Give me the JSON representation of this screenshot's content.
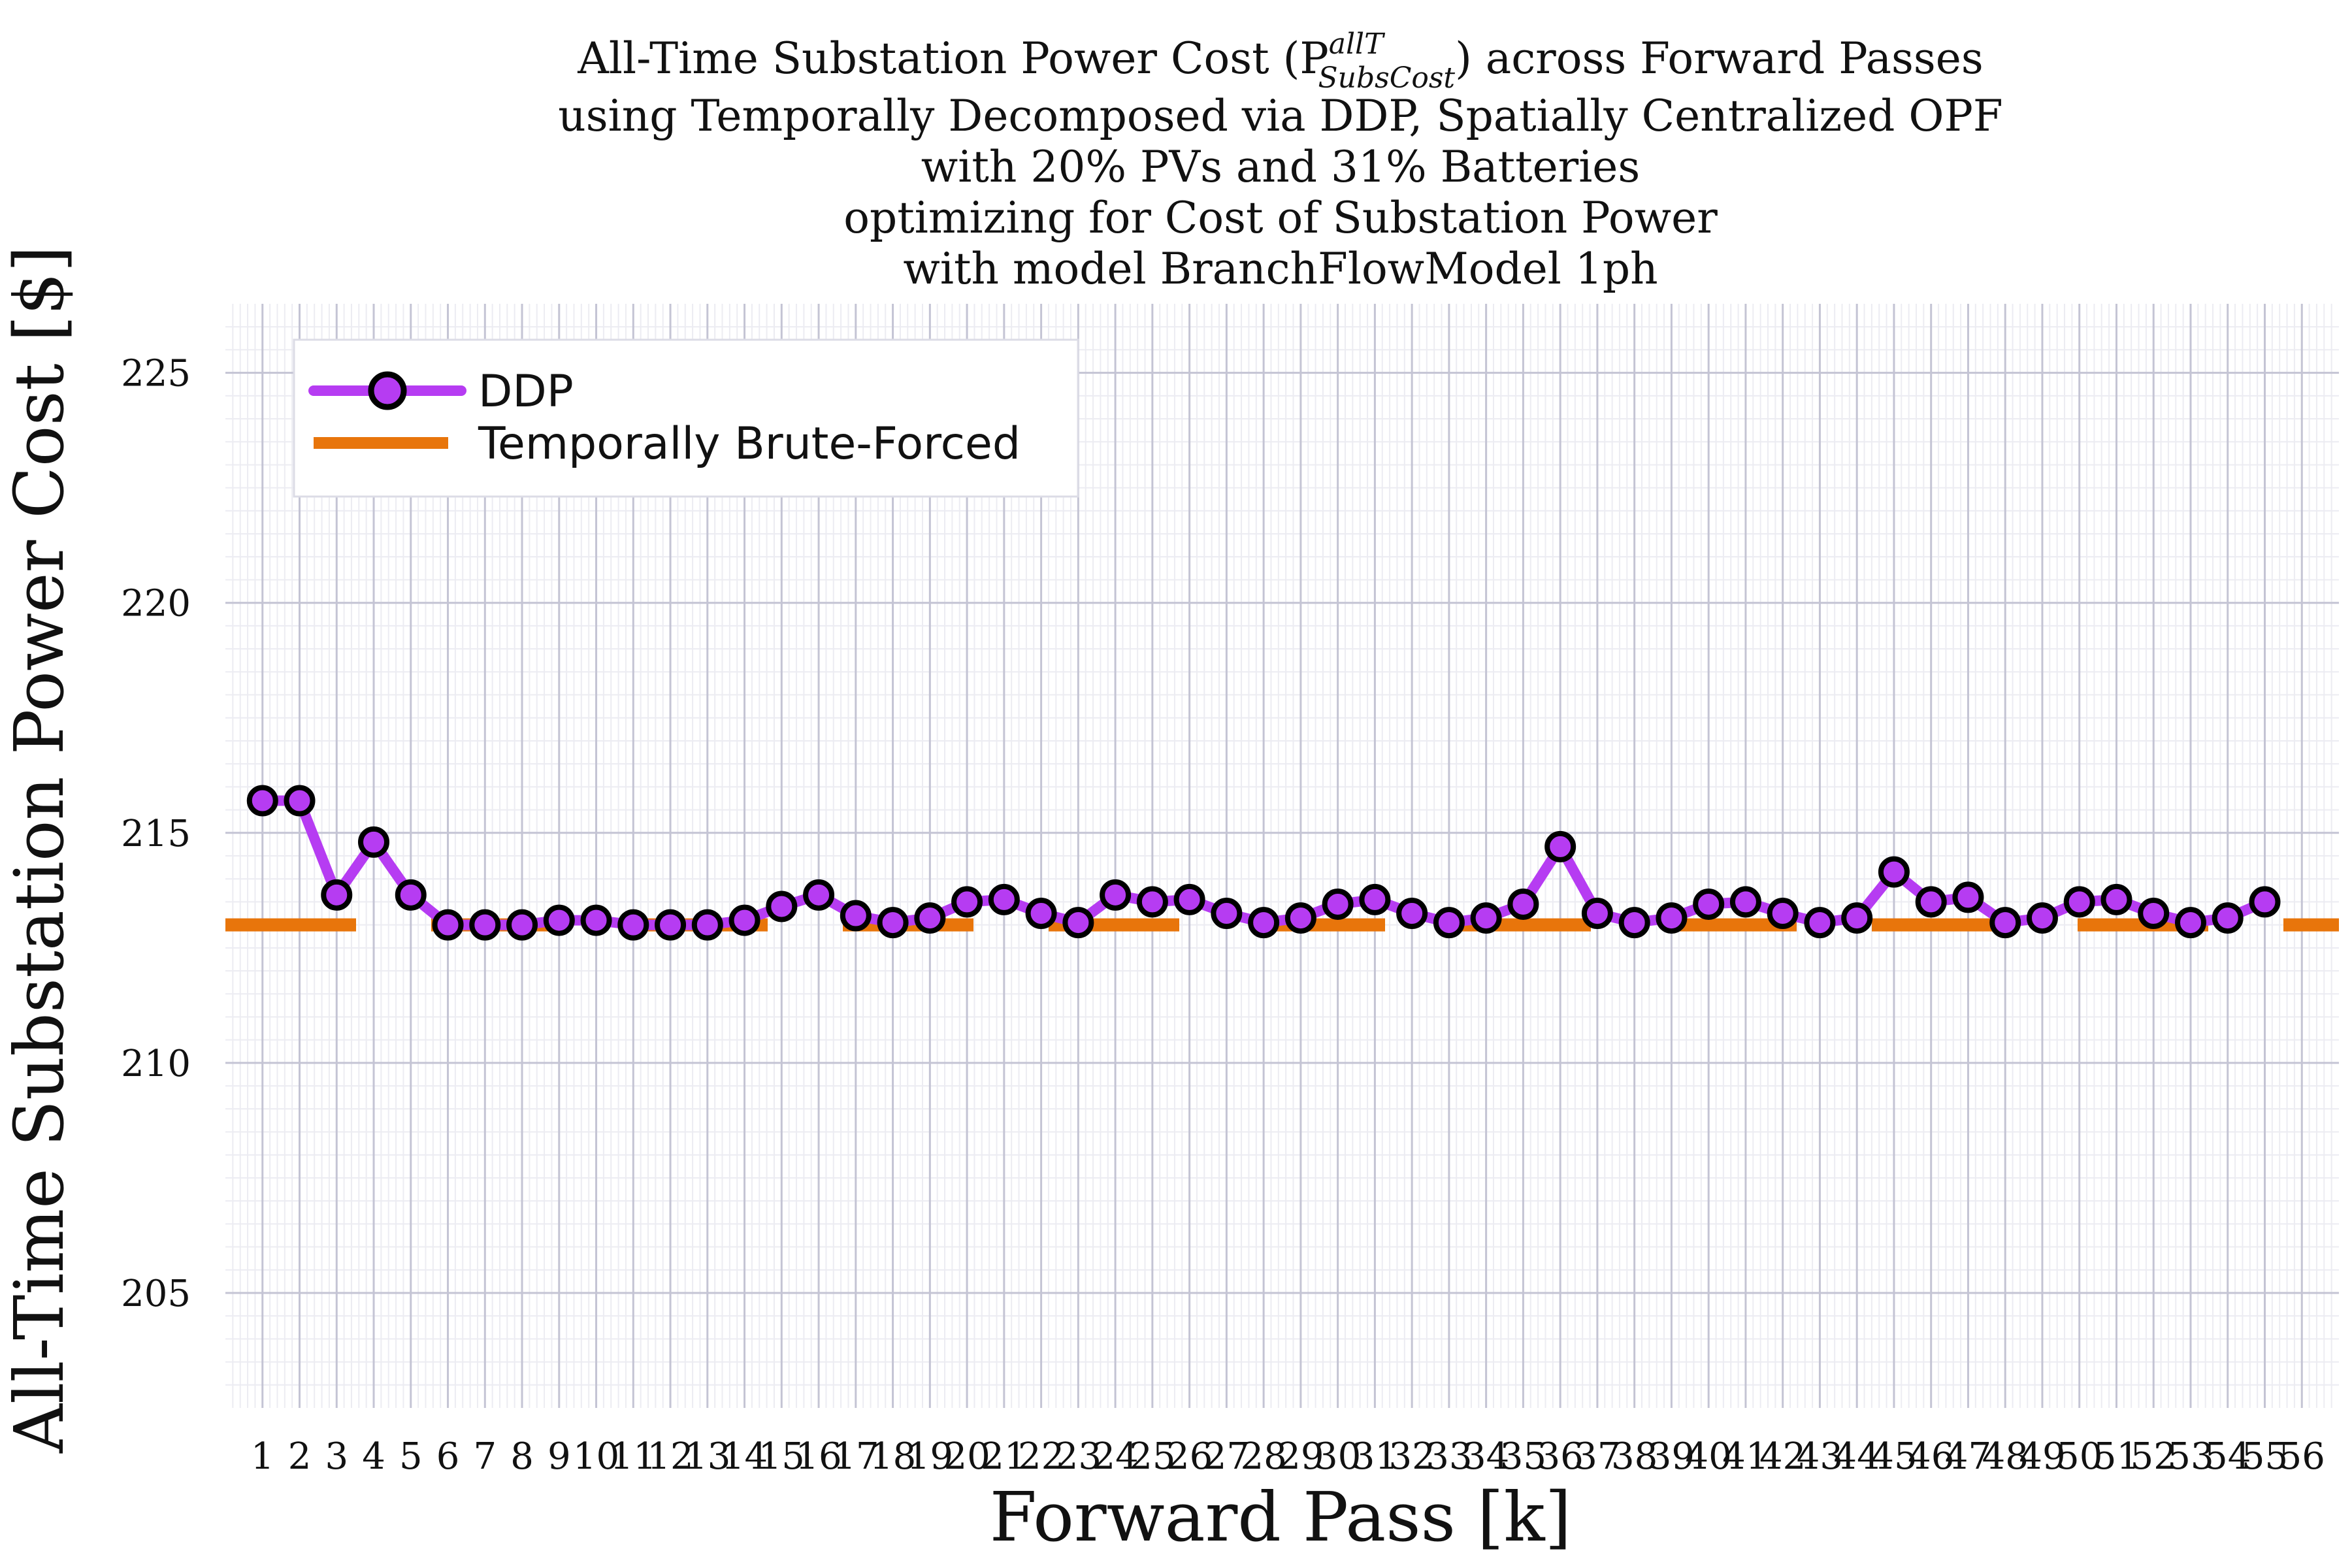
{
  "chart_data": {
    "type": "line",
    "title_lines": [
      "All-Time Substation Power Cost (P",
      "using Temporally Decomposed via DDP, Spatially Centralized OPF",
      "with 20% PVs and 31% Batteries",
      "optimizing for Cost of Substation Power",
      "with model BranchFlowModel 1ph"
    ],
    "title_sup": "allT",
    "title_sub": "SubsCost",
    "title_tail": ") across Forward Passes",
    "xlabel": "Forward Pass [k]",
    "ylabel": "All-Time Substation Power Cost [$]",
    "xlim": [
      0,
      57
    ],
    "ylim": [
      202.5,
      226.5
    ],
    "y_ticks": [
      205,
      210,
      215,
      220,
      225
    ],
    "x_ticks": [
      1,
      2,
      3,
      4,
      5,
      6,
      7,
      8,
      9,
      10,
      11,
      12,
      13,
      14,
      15,
      16,
      17,
      18,
      19,
      20,
      21,
      22,
      23,
      24,
      25,
      26,
      27,
      28,
      29,
      30,
      31,
      32,
      33,
      34,
      35,
      36,
      37,
      38,
      39,
      40,
      41,
      42,
      43,
      44,
      45,
      46,
      47,
      48,
      49,
      50,
      51,
      52,
      53,
      54,
      55,
      56
    ],
    "grid": true,
    "legend_position": "top-left",
    "series": [
      {
        "name": "DDP",
        "color": "#b63cf2",
        "marker": "circle",
        "x": [
          1,
          2,
          3,
          4,
          5,
          6,
          7,
          8,
          9,
          10,
          11,
          12,
          13,
          14,
          15,
          16,
          17,
          18,
          19,
          20,
          21,
          22,
          23,
          24,
          25,
          26,
          27,
          28,
          29,
          30,
          31,
          32,
          33,
          34,
          35,
          36,
          37,
          38,
          39,
          40,
          41,
          42,
          43,
          44,
          45,
          46,
          47,
          48,
          49,
          50,
          51,
          52,
          53,
          54,
          55
        ],
        "values": [
          215.7,
          215.7,
          213.65,
          214.8,
          213.65,
          213.0,
          213.0,
          213.0,
          213.1,
          213.1,
          213.0,
          213.0,
          213.0,
          213.1,
          213.4,
          213.65,
          213.2,
          213.05,
          213.15,
          213.5,
          213.55,
          213.25,
          213.05,
          213.65,
          213.5,
          213.55,
          213.25,
          213.05,
          213.15,
          213.45,
          213.55,
          213.25,
          213.05,
          213.15,
          213.45,
          214.7,
          213.25,
          213.05,
          213.15,
          213.45,
          213.5,
          213.25,
          213.05,
          213.15,
          214.15,
          213.5,
          213.6,
          213.05,
          213.15,
          213.5,
          213.55,
          213.25,
          213.05,
          213.15,
          213.5
        ]
      },
      {
        "name": "Temporally Brute-Forced",
        "color": "#e8750b",
        "style": "dashed",
        "value": 213.0
      }
    ]
  }
}
